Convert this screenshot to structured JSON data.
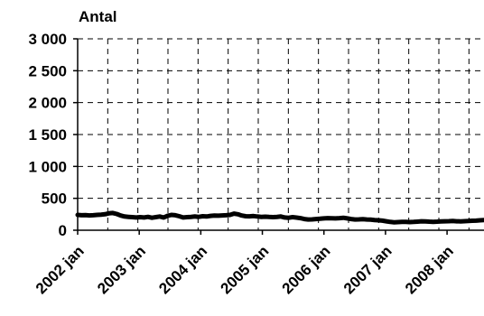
{
  "chart_data": {
    "type": "line",
    "title": "",
    "ylabel": "Antal",
    "xlabel": "",
    "ylim": [
      0,
      3000
    ],
    "yticks": [
      0,
      500,
      1000,
      1500,
      2000,
      2500,
      3000
    ],
    "ytick_labels": [
      "0",
      "500",
      "1 000",
      "1 500",
      "2 000",
      "2 500",
      "3 000"
    ],
    "xticks": [
      "2002 jan",
      "2003 jan",
      "2004 jan",
      "2005 jan",
      "2006 jan",
      "2007 jan",
      "2008 jan"
    ],
    "grid": true,
    "series": [
      {
        "values": [
          240,
          235,
          238,
          232,
          235,
          240,
          245,
          250,
          265,
          270,
          255,
          230,
          215,
          210,
          205,
          200,
          205,
          200,
          210,
          195,
          205,
          215,
          200,
          225,
          240,
          235,
          220,
          200,
          205,
          210,
          215,
          210,
          220,
          215,
          225,
          230,
          228,
          232,
          235,
          240,
          260,
          250,
          230,
          220,
          218,
          222,
          215,
          210,
          212,
          208,
          205,
          210,
          215,
          200,
          195,
          205,
          198,
          190,
          175,
          168,
          170,
          175,
          180,
          185,
          190,
          188,
          185,
          190,
          195,
          185,
          175,
          168,
          170,
          172,
          168,
          165,
          160,
          155,
          150,
          140,
          130,
          125,
          128,
          130,
          132,
          128,
          130,
          135,
          140,
          138,
          135,
          132,
          135,
          138,
          140,
          142,
          145,
          140,
          138,
          142,
          145,
          148,
          150,
          155,
          158
        ]
      }
    ]
  }
}
